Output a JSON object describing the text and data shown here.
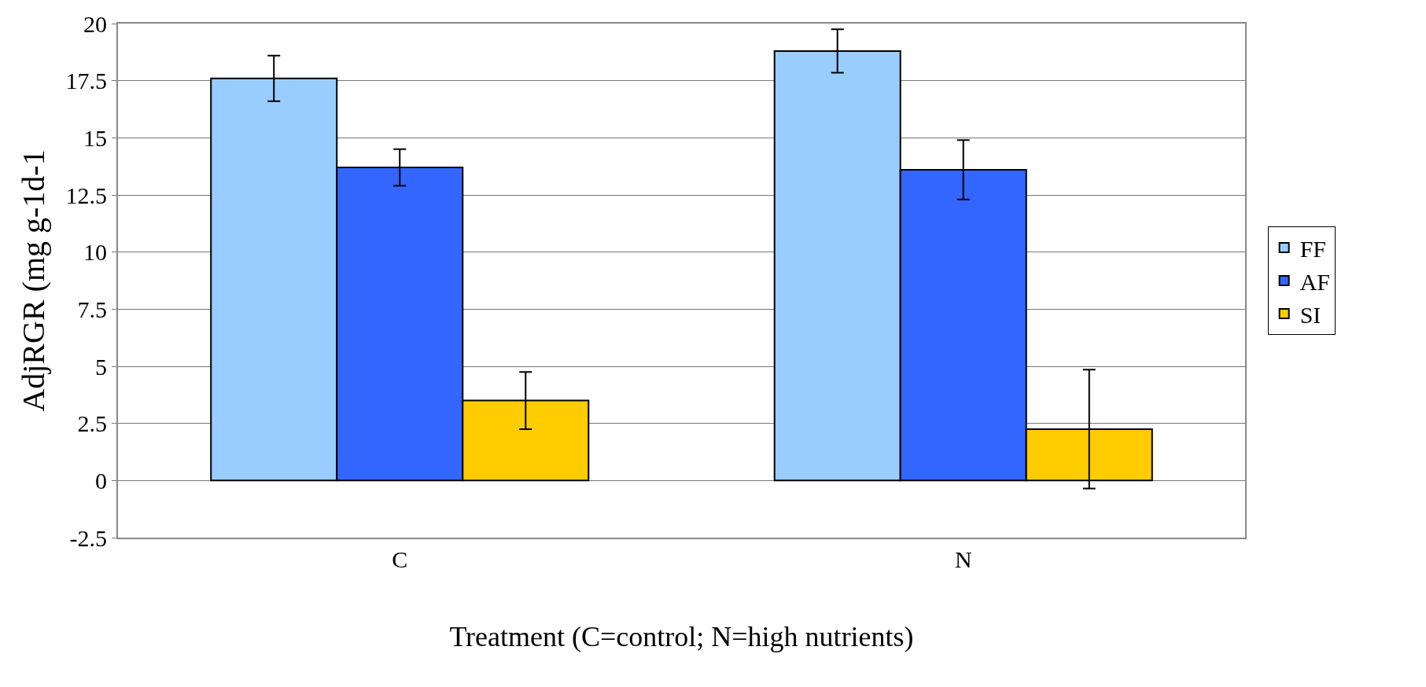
{
  "chart_data": {
    "type": "bar",
    "xlabel": "Treatment (C=control; N=high nutrients)",
    "ylabel": "AdjRGR (mg g-1d-1",
    "categories": [
      "C",
      "N"
    ],
    "series": [
      {
        "name": "FF",
        "color": "#99ccff",
        "values": [
          17.6,
          18.8
        ],
        "errors": [
          1.0,
          0.95
        ]
      },
      {
        "name": "AF",
        "color": "#3366ff",
        "values": [
          13.7,
          13.6
        ],
        "errors": [
          0.8,
          1.3
        ]
      },
      {
        "name": "SI",
        "color": "#ffcc00",
        "values": [
          3.5,
          2.25
        ],
        "errors": [
          1.25,
          2.6
        ]
      }
    ],
    "ylim": [
      -2.5,
      20
    ],
    "yticks": [
      -2.5,
      0,
      2.5,
      5,
      7.5,
      10,
      12.5,
      15,
      17.5,
      20
    ],
    "grid": "y",
    "legend": "right"
  }
}
